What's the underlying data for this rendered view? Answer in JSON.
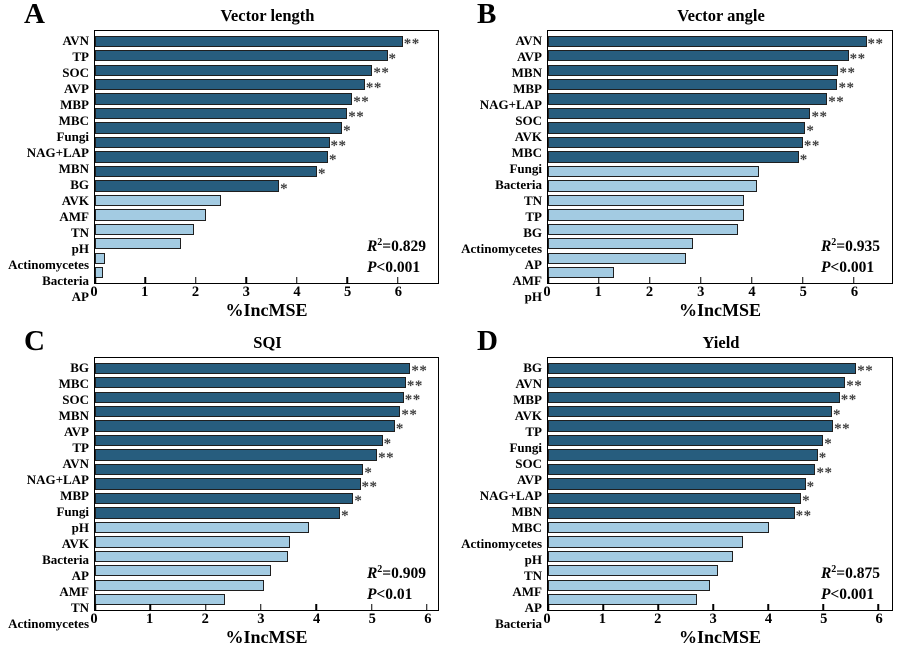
{
  "figure_title": "Random forest variable importance (%IncMSE) panels",
  "colors": {
    "dark_bar": "#275d7e",
    "light_bar": "#a3cbe2",
    "bar_border": "#1f1f1f",
    "frame": "#000000",
    "significance": "#3d3d3d",
    "background": "#ffffff"
  },
  "chart_data": [
    {
      "panel_letter": "A",
      "type": "bar",
      "orientation": "horizontal",
      "title": "Vector length",
      "xlabel": "%IncMSE",
      "x_ticks": [
        0,
        1,
        2,
        3,
        4,
        5,
        6
      ],
      "x_max": 6.8,
      "legend": "none",
      "grid": false,
      "stats": {
        "r_label": "R",
        "r_sup": "2",
        "r_value": "=0.829",
        "p_label": "P",
        "p_value": "<0.001"
      },
      "bars": [
        {
          "label": "AVN",
          "value": 6.1,
          "sig": "**",
          "tone": "dark"
        },
        {
          "label": "TP",
          "value": 5.8,
          "sig": "*",
          "tone": "dark"
        },
        {
          "label": "SOC",
          "value": 5.5,
          "sig": "**",
          "tone": "dark"
        },
        {
          "label": "AVP",
          "value": 5.35,
          "sig": "**",
          "tone": "dark"
        },
        {
          "label": "MBP",
          "value": 5.1,
          "sig": "**",
          "tone": "dark"
        },
        {
          "label": "MBC",
          "value": 5.0,
          "sig": "**",
          "tone": "dark"
        },
        {
          "label": "Fungi",
          "value": 4.9,
          "sig": "*",
          "tone": "dark"
        },
        {
          "label": "NAG+LAP",
          "value": 4.65,
          "sig": "**",
          "tone": "dark"
        },
        {
          "label": "MBN",
          "value": 4.62,
          "sig": "*",
          "tone": "dark"
        },
        {
          "label": "BG",
          "value": 4.4,
          "sig": "*",
          "tone": "dark"
        },
        {
          "label": "AVK",
          "value": 3.65,
          "sig": "*",
          "tone": "dark"
        },
        {
          "label": "AMF",
          "value": 2.5,
          "sig": "",
          "tone": "light"
        },
        {
          "label": "TN",
          "value": 2.2,
          "sig": "",
          "tone": "light"
        },
        {
          "label": "pH",
          "value": 1.97,
          "sig": "",
          "tone": "light"
        },
        {
          "label": "Actinomycetes",
          "value": 1.7,
          "sig": "",
          "tone": "light"
        },
        {
          "label": "Bacteria",
          "value": 0.19,
          "sig": "",
          "tone": "light"
        },
        {
          "label": "AP",
          "value": 0.16,
          "sig": "",
          "tone": "light"
        }
      ]
    },
    {
      "panel_letter": "B",
      "type": "bar",
      "orientation": "horizontal",
      "title": "Vector angle",
      "xlabel": "%IncMSE",
      "x_ticks": [
        0,
        1,
        2,
        3,
        4,
        5,
        6
      ],
      "x_max": 6.75,
      "legend": "none",
      "grid": false,
      "stats": {
        "r_label": "R",
        "r_sup": "2",
        "r_value": "=0.935",
        "p_label": "P",
        "p_value": "<0.001"
      },
      "bars": [
        {
          "label": "AVN",
          "value": 6.25,
          "sig": "**",
          "tone": "dark"
        },
        {
          "label": "AVP",
          "value": 5.9,
          "sig": "**",
          "tone": "dark"
        },
        {
          "label": "MBN",
          "value": 5.7,
          "sig": "**",
          "tone": "dark"
        },
        {
          "label": "MBP",
          "value": 5.68,
          "sig": "**",
          "tone": "dark"
        },
        {
          "label": "NAG+LAP",
          "value": 5.48,
          "sig": "**",
          "tone": "dark"
        },
        {
          "label": "SOC",
          "value": 5.15,
          "sig": "**",
          "tone": "dark"
        },
        {
          "label": "AVK",
          "value": 5.05,
          "sig": "*",
          "tone": "dark"
        },
        {
          "label": "MBC",
          "value": 5.0,
          "sig": "**",
          "tone": "dark"
        },
        {
          "label": "Fungi",
          "value": 4.92,
          "sig": "*",
          "tone": "dark"
        },
        {
          "label": "Bacteria",
          "value": 4.15,
          "sig": "",
          "tone": "light"
        },
        {
          "label": "TN",
          "value": 4.1,
          "sig": "",
          "tone": "light"
        },
        {
          "label": "TP",
          "value": 3.85,
          "sig": "",
          "tone": "light"
        },
        {
          "label": "BG",
          "value": 3.84,
          "sig": "",
          "tone": "light"
        },
        {
          "label": "Actinomycetes",
          "value": 3.72,
          "sig": "",
          "tone": "light"
        },
        {
          "label": "AP",
          "value": 2.85,
          "sig": "",
          "tone": "light"
        },
        {
          "label": "AMF",
          "value": 2.7,
          "sig": "",
          "tone": "light"
        },
        {
          "label": "pH",
          "value": 1.3,
          "sig": "",
          "tone": "light"
        }
      ]
    },
    {
      "panel_letter": "C",
      "type": "bar",
      "orientation": "horizontal",
      "title": "SQI",
      "xlabel": "%IncMSE",
      "x_ticks": [
        0,
        1,
        2,
        3,
        4,
        5,
        6
      ],
      "x_max": 6.2,
      "legend": "none",
      "grid": false,
      "stats": {
        "r_label": "R",
        "r_sup": "2",
        "r_value": "=0.909",
        "p_label": "P",
        "p_value": "<0.01"
      },
      "bars": [
        {
          "label": "BG",
          "value": 5.7,
          "sig": "**",
          "tone": "dark"
        },
        {
          "label": "MBC",
          "value": 5.62,
          "sig": "**",
          "tone": "dark"
        },
        {
          "label": "SOC",
          "value": 5.58,
          "sig": "**",
          "tone": "dark"
        },
        {
          "label": "MBN",
          "value": 5.52,
          "sig": "**",
          "tone": "dark"
        },
        {
          "label": "AVP",
          "value": 5.42,
          "sig": "*",
          "tone": "dark"
        },
        {
          "label": "TP",
          "value": 5.2,
          "sig": "*",
          "tone": "dark"
        },
        {
          "label": "AVN",
          "value": 5.1,
          "sig": "**",
          "tone": "dark"
        },
        {
          "label": "NAG+LAP",
          "value": 4.85,
          "sig": "*",
          "tone": "dark"
        },
        {
          "label": "MBP",
          "value": 4.8,
          "sig": "**",
          "tone": "dark"
        },
        {
          "label": "Fungi",
          "value": 4.67,
          "sig": "*",
          "tone": "dark"
        },
        {
          "label": "pH",
          "value": 4.43,
          "sig": "*",
          "tone": "dark"
        },
        {
          "label": "AVK",
          "value": 3.86,
          "sig": "",
          "tone": "light"
        },
        {
          "label": "Bacteria",
          "value": 3.53,
          "sig": "",
          "tone": "light"
        },
        {
          "label": "AP",
          "value": 3.48,
          "sig": "",
          "tone": "light"
        },
        {
          "label": "AMF",
          "value": 3.18,
          "sig": "",
          "tone": "light"
        },
        {
          "label": "TN",
          "value": 3.05,
          "sig": "",
          "tone": "light"
        },
        {
          "label": "Actinomycetes",
          "value": 2.35,
          "sig": "",
          "tone": "light"
        }
      ]
    },
    {
      "panel_letter": "D",
      "type": "bar",
      "orientation": "horizontal",
      "title": "Yield",
      "xlabel": "%IncMSE",
      "x_ticks": [
        0,
        1,
        2,
        3,
        4,
        5,
        6
      ],
      "x_max": 6.25,
      "legend": "none",
      "grid": false,
      "stats": {
        "r_label": "R",
        "r_sup": "2",
        "r_value": "=0.875",
        "p_label": "P",
        "p_value": "<0.001"
      },
      "bars": [
        {
          "label": "BG",
          "value": 5.6,
          "sig": "**",
          "tone": "dark"
        },
        {
          "label": "AVN",
          "value": 5.4,
          "sig": "**",
          "tone": "dark"
        },
        {
          "label": "MBP",
          "value": 5.3,
          "sig": "**",
          "tone": "dark"
        },
        {
          "label": "AVK",
          "value": 5.16,
          "sig": "*",
          "tone": "dark"
        },
        {
          "label": "TP",
          "value": 5.18,
          "sig": "**",
          "tone": "dark"
        },
        {
          "label": "Fungi",
          "value": 5.0,
          "sig": "*",
          "tone": "dark"
        },
        {
          "label": "SOC",
          "value": 4.9,
          "sig": "*",
          "tone": "dark"
        },
        {
          "label": "AVP",
          "value": 4.86,
          "sig": "**",
          "tone": "dark"
        },
        {
          "label": "NAG+LAP",
          "value": 4.68,
          "sig": "*",
          "tone": "dark"
        },
        {
          "label": "MBN",
          "value": 4.6,
          "sig": "*",
          "tone": "dark"
        },
        {
          "label": "MBC",
          "value": 4.48,
          "sig": "**",
          "tone": "dark"
        },
        {
          "label": "Actinomycetes",
          "value": 4.02,
          "sig": "",
          "tone": "light"
        },
        {
          "label": "pH",
          "value": 3.55,
          "sig": "",
          "tone": "light"
        },
        {
          "label": "TN",
          "value": 3.36,
          "sig": "",
          "tone": "light"
        },
        {
          "label": "AMF",
          "value": 3.08,
          "sig": "",
          "tone": "light"
        },
        {
          "label": "AP",
          "value": 2.95,
          "sig": "",
          "tone": "light"
        },
        {
          "label": "Bacteria",
          "value": 2.7,
          "sig": "",
          "tone": "light"
        }
      ]
    }
  ]
}
